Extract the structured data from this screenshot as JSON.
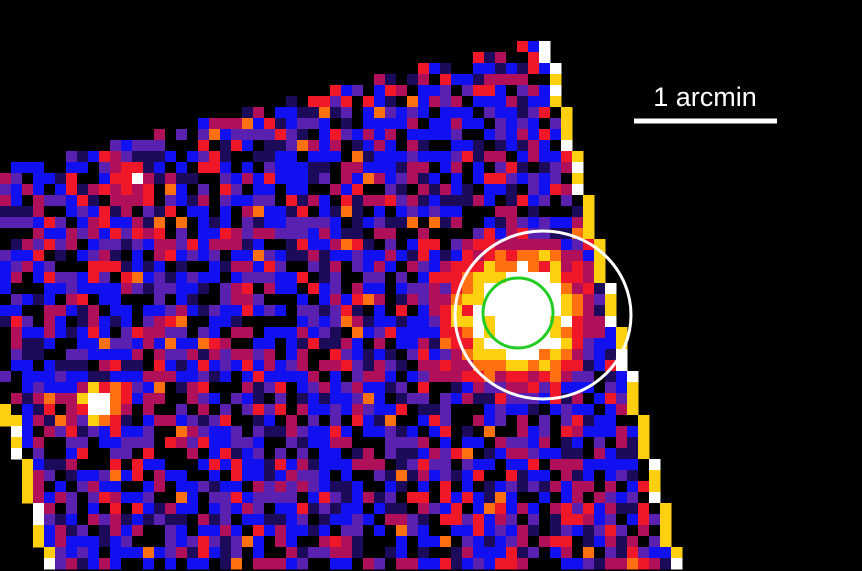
{
  "scale_bar": {
    "label": "1 arcmin"
  }
}
